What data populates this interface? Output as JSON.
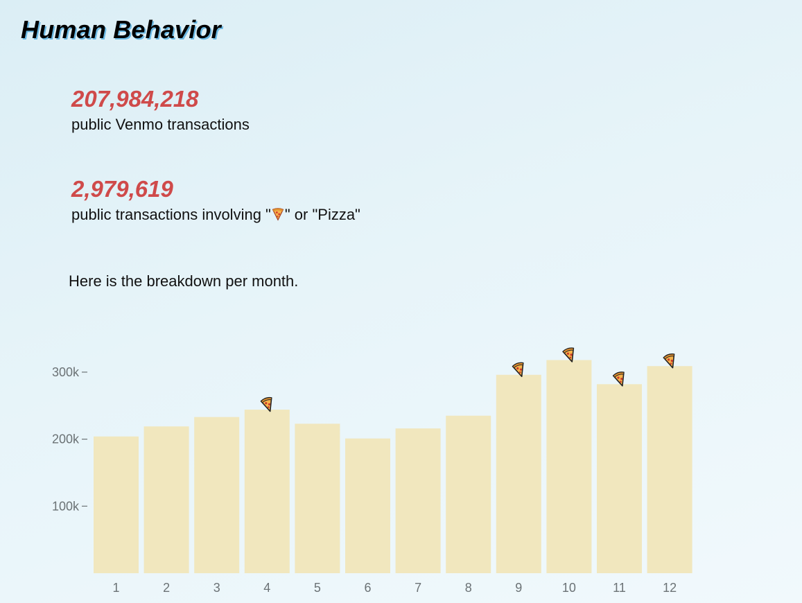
{
  "page": {
    "title": "Human Behavior",
    "stat1_value": "207,984,218",
    "stat1_label": "public Venmo transactions",
    "stat2_value": "2,979,619",
    "stat2_label_prefix": "public transactions involving \"",
    "stat2_label_suffix": "\" or \"Pizza\"",
    "breakdown_text": "Here is the breakdown per month.",
    "emoji_icon": "pizza-icon"
  },
  "colors": {
    "title_shadow": "#69b7e2",
    "stat_value": "#cf4a4a",
    "bar": "#f1e5b9",
    "axis_text": "#6b7275"
  },
  "chart_data": {
    "type": "bar",
    "categories": [
      "1",
      "2",
      "3",
      "4",
      "5",
      "6",
      "7",
      "8",
      "9",
      "10",
      "11",
      "12"
    ],
    "values": [
      204000,
      219000,
      233000,
      244000,
      223000,
      201000,
      216000,
      235000,
      296000,
      318000,
      282000,
      309000
    ],
    "title": "",
    "xlabel": "",
    "ylabel": "",
    "ylim": [
      0,
      350000
    ],
    "yticks": [
      100000,
      200000,
      300000
    ],
    "ytick_labels": [
      "100k",
      "200k",
      "300k"
    ],
    "grid": false,
    "markers": {
      "icon": "pizza-icon",
      "months": [
        "4",
        "9",
        "10",
        "11",
        "12"
      ]
    }
  }
}
